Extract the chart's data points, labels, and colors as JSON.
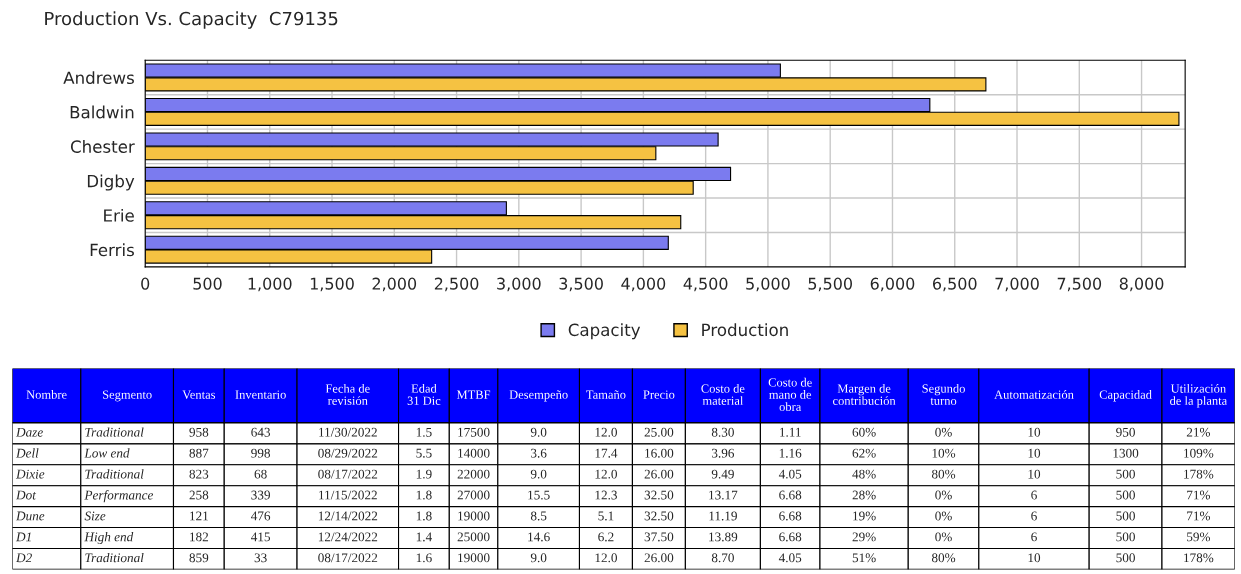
{
  "chart_data": [
    {
      "type": "bar",
      "title": "Production Vs. Capacity  C79135",
      "orientation": "horizontal",
      "categories": [
        "Andrews",
        "Baldwin",
        "Chester",
        "Digby",
        "Erie",
        "Ferris"
      ],
      "series": [
        {
          "name": "Capacity",
          "color": "#7b7bef",
          "values": [
            5100,
            6300,
            4600,
            4700,
            2900,
            4200
          ]
        },
        {
          "name": "Production",
          "color": "#f5c242",
          "values": [
            6750,
            8300,
            4100,
            4400,
            4300,
            2300
          ]
        }
      ],
      "xlim": [
        0,
        8350
      ],
      "xticks": [
        0,
        500,
        {
          "value": 1000,
          "label": "1,000"
        },
        {
          "value": 1500,
          "label": "1,500"
        },
        {
          "value": 2000,
          "label": "2,000"
        },
        {
          "value": 2500,
          "label": "2,500"
        },
        {
          "value": 3000,
          "label": "3,000"
        },
        {
          "value": 3500,
          "label": "3,500"
        },
        {
          "value": 4000,
          "label": "4,000"
        },
        {
          "value": 4500,
          "label": "4,500"
        },
        {
          "value": 5000,
          "label": "5,000"
        },
        {
          "value": 5500,
          "label": "5,500"
        },
        {
          "value": 6000,
          "label": "6,000"
        },
        {
          "value": 6500,
          "label": "6,500"
        },
        {
          "value": 7000,
          "label": "7,000"
        },
        {
          "value": 7500,
          "label": "7,500"
        },
        {
          "value": 8000,
          "label": "8,000"
        }
      ],
      "grid": true,
      "legend": "bottom"
    },
    {
      "type": "other",
      "categories": [
        "Nombre",
        "Segmento",
        "Ventas",
        "Inventario",
        "Fecha de\nrevisión",
        "Edad\n31 Dic",
        "MTBF",
        "Desempeño",
        "Tamaño",
        "Precio",
        "Costo de\nmaterial",
        "Costo de\nmano de\nobra",
        "Margen de\ncontribución",
        "Segundo\nturno",
        "Automatización",
        "Capacidad",
        "Utilización\nde la planta"
      ],
      "cell_labels": [
        [
          "Daze",
          "Traditional",
          "958",
          "643",
          "11/30/2022",
          "1.5",
          "17500",
          "9.0",
          "12.0",
          "25.00",
          "8.30",
          "1.11",
          "60%",
          "0%",
          "10",
          "950",
          "21%"
        ],
        [
          "Dell",
          "Low end",
          "887",
          "998",
          "08/29/2022",
          "5.5",
          "14000",
          "3.6",
          "17.4",
          "16.00",
          "3.96",
          "1.16",
          "62%",
          "10%",
          "10",
          "1300",
          "109%"
        ],
        [
          "Dixie",
          "Traditional",
          "823",
          "68",
          "08/17/2022",
          "1.9",
          "22000",
          "9.0",
          "12.0",
          "26.00",
          "9.49",
          "4.05",
          "48%",
          "80%",
          "10",
          "500",
          "178%"
        ],
        [
          "Dot",
          "Performance",
          "258",
          "339",
          "11/15/2022",
          "1.8",
          "27000",
          "15.5",
          "12.3",
          "32.50",
          "13.17",
          "6.68",
          "28%",
          "0%",
          "6",
          "500",
          "71%"
        ],
        [
          "Dune",
          "Size",
          "121",
          "476",
          "12/14/2022",
          "1.8",
          "19000",
          "8.5",
          "5.1",
          "32.50",
          "11.19",
          "6.68",
          "19%",
          "0%",
          "6",
          "500",
          "71%"
        ],
        [
          "D1",
          "High end",
          "182",
          "415",
          "12/24/2022",
          "1.4",
          "25000",
          "14.6",
          "6.2",
          "37.50",
          "13.89",
          "6.68",
          "29%",
          "0%",
          "6",
          "500",
          "59%"
        ],
        [
          "D2",
          "Traditional",
          "859",
          "33",
          "08/17/2022",
          "1.6",
          "19000",
          "9.0",
          "12.0",
          "26.00",
          "8.70",
          "4.05",
          "51%",
          "80%",
          "10",
          "500",
          "178%"
        ]
      ]
    }
  ]
}
